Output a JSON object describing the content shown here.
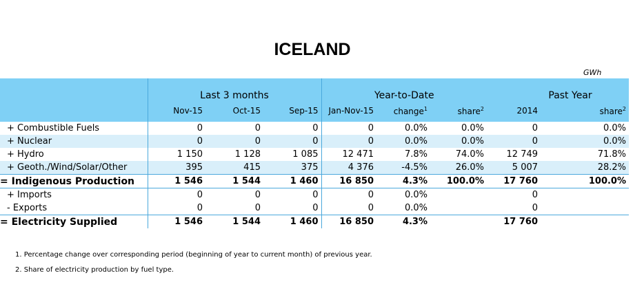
{
  "title": "ICELAND",
  "unit": "GWh",
  "headers": {
    "groups": [
      "Last 3 months",
      "Year-to-Date",
      "Past Year"
    ],
    "columns": [
      "Nov-15",
      "Oct-15",
      "Sep-15",
      "Jan-Nov-15",
      "change",
      "share",
      "2014",
      "share"
    ],
    "superscripts": {
      "change": "1",
      "share": "2"
    }
  },
  "rows": [
    {
      "label": "+ Combustible Fuels",
      "values": [
        "0",
        "0",
        "0",
        "0",
        "0.0%",
        "0.0%",
        "0",
        "0.0%"
      ]
    },
    {
      "label": "+ Nuclear",
      "values": [
        "0",
        "0",
        "0",
        "0",
        "0.0%",
        "0.0%",
        "0",
        "0.0%"
      ]
    },
    {
      "label": "+ Hydro",
      "values": [
        "1 150",
        "1 128",
        "1 085",
        "12 471",
        "7.8%",
        "74.0%",
        "12 749",
        "71.8%"
      ]
    },
    {
      "label": "+ Geoth./Wind/Solar/Other",
      "values": [
        "395",
        "415",
        "375",
        "4 376",
        "-4.5%",
        "26.0%",
        "5 007",
        "28.2%"
      ]
    },
    {
      "label": "= Indigenous Production",
      "values": [
        "1 546",
        "1 544",
        "1 460",
        "16 850",
        "4.3%",
        "100.0%",
        "17 760",
        "100.0%"
      ]
    },
    {
      "label": "+ Imports",
      "values": [
        "0",
        "0",
        "0",
        "0",
        "0.0%",
        "",
        "0",
        ""
      ]
    },
    {
      "label": "- Exports",
      "values": [
        "0",
        "0",
        "0",
        "0",
        "0.0%",
        "",
        "0",
        ""
      ]
    },
    {
      "label": "= Electricity Supplied",
      "values": [
        "1 546",
        "1 544",
        "1 460",
        "16 850",
        "4.3%",
        "",
        "17 760",
        ""
      ]
    }
  ],
  "notes": [
    "1. Percentage change over corresponding period (beginning of year to current month) of previous year.",
    "2. Share of electricity production by fuel type."
  ]
}
